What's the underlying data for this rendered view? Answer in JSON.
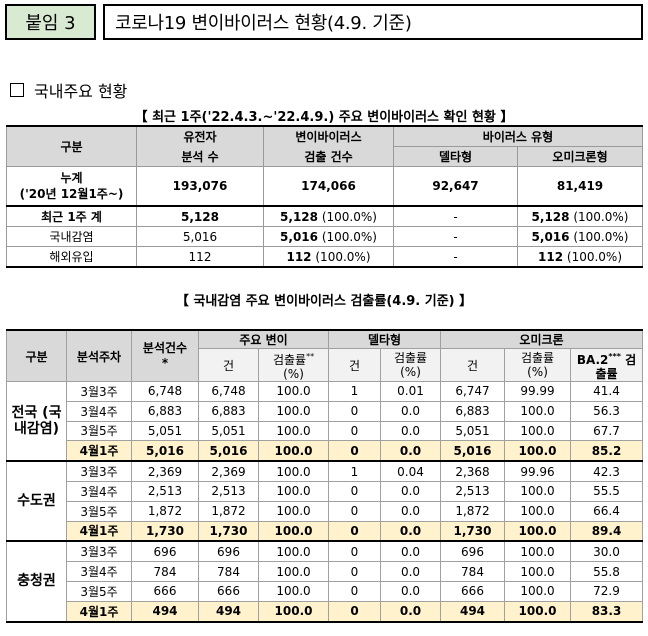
{
  "header": {
    "attachment": "붙임 3",
    "title": "코로나19 변이바이러스 현황(4.9. 기준)"
  },
  "section": {
    "title": "국내주요 현황"
  },
  "table1": {
    "caption": "【 최근 1주('22.4.3.~'22.4.9.) 주요 변이바이러스 확인 현황 】",
    "headers": {
      "category": "구분",
      "genome_1": "유전자",
      "genome_2": "분석 수",
      "variant_1": "변이바이러스",
      "variant_2": "검출 건수",
      "type": "바이러스 유형",
      "delta": "델타형",
      "omicron": "오미크론형"
    },
    "rows": [
      {
        "label1": "누계",
        "label2": "('20년 12월1주~)",
        "genome": "193,076",
        "detected": "174,066",
        "detected_pct": "",
        "delta": "92,647",
        "omicron": "81,419",
        "omicron_pct": ""
      },
      {
        "label1": "최근 1주 계",
        "label2": "",
        "genome": "5,128",
        "detected": "5,128",
        "detected_pct": "(100.0%)",
        "delta": "-",
        "omicron": "5,128",
        "omicron_pct": "(100.0%)"
      },
      {
        "label1": "국내감염",
        "label2": "",
        "genome": "5,016",
        "detected": "5,016",
        "detected_pct": "(100.0%)",
        "delta": "-",
        "omicron": "5,016",
        "omicron_pct": "(100.0%)"
      },
      {
        "label1": "해외유입",
        "label2": "",
        "genome": "112",
        "detected": "112",
        "detected_pct": "(100.0%)",
        "delta": "-",
        "omicron": "112",
        "omicron_pct": "(100.0%)"
      }
    ]
  },
  "table2": {
    "caption": "【 국내감염 주요 변이바이러스 검출률(4.9. 기준) 】",
    "headers": {
      "category": "구분",
      "week": "분석주차",
      "analyzed": "분석건수",
      "analyzed_mark": "*",
      "major": "주요 변이",
      "delta": "델타형",
      "omicron": "오미크론",
      "count": "건",
      "rate": "검출률",
      "rate_unit": "(%)",
      "rate_mark": "**",
      "ba2": "BA.2",
      "ba2_mark": "***",
      "ba2_rate_1": "검",
      "ba2_rate_2": "출률"
    },
    "groups": [
      {
        "region": "전국 (국내감염)",
        "rows": [
          {
            "week": "3월3주",
            "analyzed": "6,748",
            "major_n": "6,748",
            "major_r": "100.0",
            "delta_n": "1",
            "delta_r": "0.01",
            "omi_n": "6,747",
            "omi_r": "99.99",
            "ba2": "41.4"
          },
          {
            "week": "3월4주",
            "analyzed": "6,883",
            "major_n": "6,883",
            "major_r": "100.0",
            "delta_n": "0",
            "delta_r": "0.0",
            "omi_n": "6,883",
            "omi_r": "100.0",
            "ba2": "56.3"
          },
          {
            "week": "3월5주",
            "analyzed": "5,051",
            "major_n": "5,051",
            "major_r": "100.0",
            "delta_n": "0",
            "delta_r": "0.0",
            "omi_n": "5,051",
            "omi_r": "100.0",
            "ba2": "67.7"
          },
          {
            "week": "4월1주",
            "analyzed": "5,016",
            "major_n": "5,016",
            "major_r": "100.0",
            "delta_n": "0",
            "delta_r": "0.0",
            "omi_n": "5,016",
            "omi_r": "100.0",
            "ba2": "85.2"
          }
        ]
      },
      {
        "region": "수도권",
        "rows": [
          {
            "week": "3월3주",
            "analyzed": "2,369",
            "major_n": "2,369",
            "major_r": "100.0",
            "delta_n": "1",
            "delta_r": "0.04",
            "omi_n": "2,368",
            "omi_r": "99.96",
            "ba2": "42.3"
          },
          {
            "week": "3월4주",
            "analyzed": "2,513",
            "major_n": "2,513",
            "major_r": "100.0",
            "delta_n": "0",
            "delta_r": "0.0",
            "omi_n": "2,513",
            "omi_r": "100.0",
            "ba2": "55.5"
          },
          {
            "week": "3월5주",
            "analyzed": "1,872",
            "major_n": "1,872",
            "major_r": "100.0",
            "delta_n": "0",
            "delta_r": "0.0",
            "omi_n": "1,872",
            "omi_r": "100.0",
            "ba2": "66.4"
          },
          {
            "week": "4월1주",
            "analyzed": "1,730",
            "major_n": "1,730",
            "major_r": "100.0",
            "delta_n": "0",
            "delta_r": "0.0",
            "omi_n": "1,730",
            "omi_r": "100.0",
            "ba2": "89.4"
          }
        ]
      },
      {
        "region": "충청권",
        "rows": [
          {
            "week": "3월3주",
            "analyzed": "696",
            "major_n": "696",
            "major_r": "100.0",
            "delta_n": "0",
            "delta_r": "0.0",
            "omi_n": "696",
            "omi_r": "100.0",
            "ba2": "30.0"
          },
          {
            "week": "3월4주",
            "analyzed": "784",
            "major_n": "784",
            "major_r": "100.0",
            "delta_n": "0",
            "delta_r": "0.0",
            "omi_n": "784",
            "omi_r": "100.0",
            "ba2": "55.8"
          },
          {
            "week": "3월5주",
            "analyzed": "666",
            "major_n": "666",
            "major_r": "100.0",
            "delta_n": "0",
            "delta_r": "0.0",
            "omi_n": "666",
            "omi_r": "100.0",
            "ba2": "72.9"
          },
          {
            "week": "4월1주",
            "analyzed": "494",
            "major_n": "494",
            "major_r": "100.0",
            "delta_n": "0",
            "delta_r": "0.0",
            "omi_n": "494",
            "omi_r": "100.0",
            "ba2": "83.3"
          }
        ]
      }
    ]
  }
}
